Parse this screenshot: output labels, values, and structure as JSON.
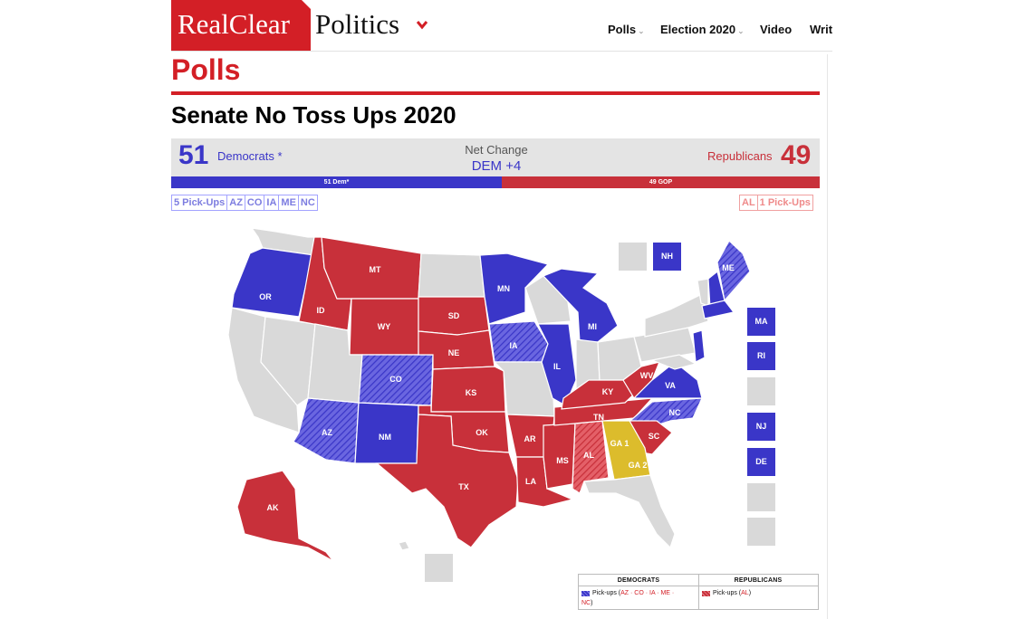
{
  "header": {
    "logo_red": "RealClear",
    "logo_black": "Politics",
    "nav": [
      {
        "label": "Polls",
        "caret": "⌄"
      },
      {
        "label": "Election 2020",
        "caret": "⌄"
      },
      {
        "label": "Video"
      },
      {
        "label": "Writers"
      }
    ]
  },
  "section_title": "Polls",
  "page_title": "Senate No Toss Ups 2020",
  "summary": {
    "dem_count": "51",
    "dem_label": "Democrats *",
    "net_label": "Net Change",
    "net_value": "DEM +4",
    "rep_label": "Republicans",
    "rep_count": "49",
    "bar_dem_label": "51 Dem*",
    "bar_rep_label": "49 GOP",
    "dem_share": 0.51,
    "rep_share": 0.49
  },
  "dem_pickups": {
    "label": "5 Pick-Ups",
    "states": [
      "AZ",
      "CO",
      "IA",
      "ME",
      "NC"
    ]
  },
  "rep_pickups": {
    "label": "1 Pick-Ups",
    "states": [
      "AL"
    ]
  },
  "colors": {
    "dem": "#3a36c8",
    "rep": "#c8303a",
    "tossup": "#dcbc2c",
    "no_race": "#d9d9d9",
    "brand_red": "#d31f26"
  },
  "map": {
    "state_labels": [
      "OR",
      "ID",
      "MT",
      "WY",
      "SD",
      "MN",
      "MI",
      "IA",
      "NE",
      "CO",
      "KS",
      "IL",
      "WV",
      "KY",
      "VA",
      "NC",
      "TN",
      "AZ",
      "NM",
      "OK",
      "AR",
      "MS",
      "AL",
      "GA 1",
      "GA 2",
      "SC",
      "TX",
      "LA",
      "AK",
      "ME"
    ],
    "side_boxes": [
      {
        "label": ""
      },
      {
        "label": "NH"
      },
      {
        "label": "MA"
      },
      {
        "label": "RI"
      },
      {
        "label": ""
      },
      {
        "label": "NJ"
      },
      {
        "label": "DE"
      },
      {
        "label": ""
      },
      {
        "label": ""
      },
      {
        "label": ""
      }
    ]
  },
  "legend": {
    "dem_header": "DEMOCRATS",
    "rep_header": "REPUBLICANS",
    "dem_text": "Pick-ups (",
    "dem_states": "AZ · CO · IA · ME ·",
    "dem_states_2": "NC",
    "dem_close": ")",
    "rep_text": "Pick-ups (",
    "rep_states": "AL",
    "rep_close": ")"
  }
}
